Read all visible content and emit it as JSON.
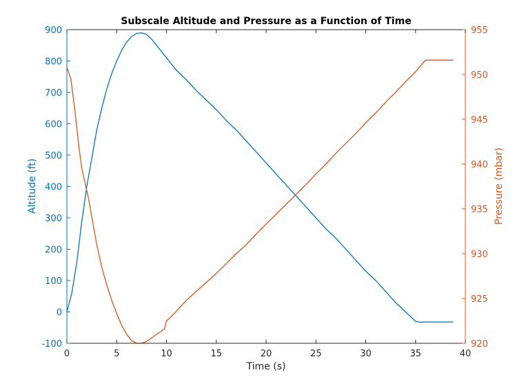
{
  "chart_data": {
    "type": "line",
    "title": "Subscale Altitude and Pressure as a Function of Time",
    "xlabel": "Time (s)",
    "ylabel_left": "Altitude (ft)",
    "ylabel_right": "Pressure (mbar)",
    "xlim": [
      0,
      40
    ],
    "ylim_left": [
      -100,
      900
    ],
    "ylim_right": [
      920,
      955
    ],
    "xticks": [
      "0",
      "5",
      "10",
      "15",
      "20",
      "25",
      "30",
      "35",
      "40"
    ],
    "yticks_left": [
      "-100",
      "0",
      "100",
      "200",
      "300",
      "400",
      "500",
      "600",
      "700",
      "800",
      "900"
    ],
    "yticks_right": [
      "920",
      "925",
      "930",
      "935",
      "940",
      "945",
      "950",
      "955"
    ],
    "grid": false,
    "colors": {
      "altitude": "#0072BD",
      "pressure": "#D95319",
      "axis": "#262626"
    },
    "series": [
      {
        "axis": "left",
        "x": [
          0,
          0.5,
          1,
          1.5,
          2,
          2.5,
          3,
          3.5,
          4,
          4.5,
          5,
          5.5,
          6,
          6.5,
          7,
          7.5,
          8,
          8.5,
          9,
          10,
          11,
          12,
          13,
          14,
          15,
          16,
          17,
          18,
          19,
          20,
          21,
          22,
          23,
          24,
          25,
          26,
          27,
          28,
          29,
          30,
          31,
          32,
          33,
          34,
          35,
          35.5,
          36,
          37,
          38,
          38.8
        ],
        "values": [
          0,
          60,
          160,
          290,
          400,
          490,
          580,
          650,
          710,
          760,
          800,
          835,
          860,
          878,
          888,
          890,
          885,
          870,
          850,
          810,
          770,
          740,
          705,
          675,
          645,
          610,
          580,
          545,
          510,
          475,
          440,
          405,
          370,
          335,
          300,
          265,
          235,
          200,
          165,
          130,
          100,
          65,
          30,
          0,
          -30,
          -33,
          -32,
          -32,
          -32,
          -32
        ]
      },
      {
        "axis": "right",
        "x": [
          0,
          0.4,
          0.8,
          1.2,
          1.5,
          1.8,
          2.2,
          2.6,
          3,
          3.5,
          4,
          4.5,
          5,
          5.5,
          6,
          6.5,
          7,
          7.5,
          8,
          9,
          9.8,
          10,
          10.5,
          11,
          12,
          13,
          14,
          15,
          16,
          17,
          18,
          19,
          20,
          21,
          22,
          23,
          24,
          25,
          26,
          27,
          28,
          29,
          30,
          31,
          32,
          33,
          34,
          35,
          36,
          37,
          38,
          38.8
        ],
        "values": [
          950.8,
          949.5,
          946,
          942,
          939.5,
          938,
          936,
          933.5,
          931,
          928.5,
          926.5,
          924.8,
          923.3,
          922,
          921,
          920.3,
          920,
          920,
          920.2,
          921,
          921.6,
          922.5,
          923,
          923.6,
          924.8,
          925.8,
          926.8,
          927.8,
          928.9,
          930,
          931,
          932.2,
          933.3,
          934.4,
          935.5,
          936.6,
          937.7,
          938.9,
          940,
          941.2,
          942.3,
          943.4,
          944.6,
          945.7,
          946.9,
          948,
          949.2,
          950.3,
          951.6,
          951.6,
          951.6,
          951.6
        ]
      }
    ]
  }
}
